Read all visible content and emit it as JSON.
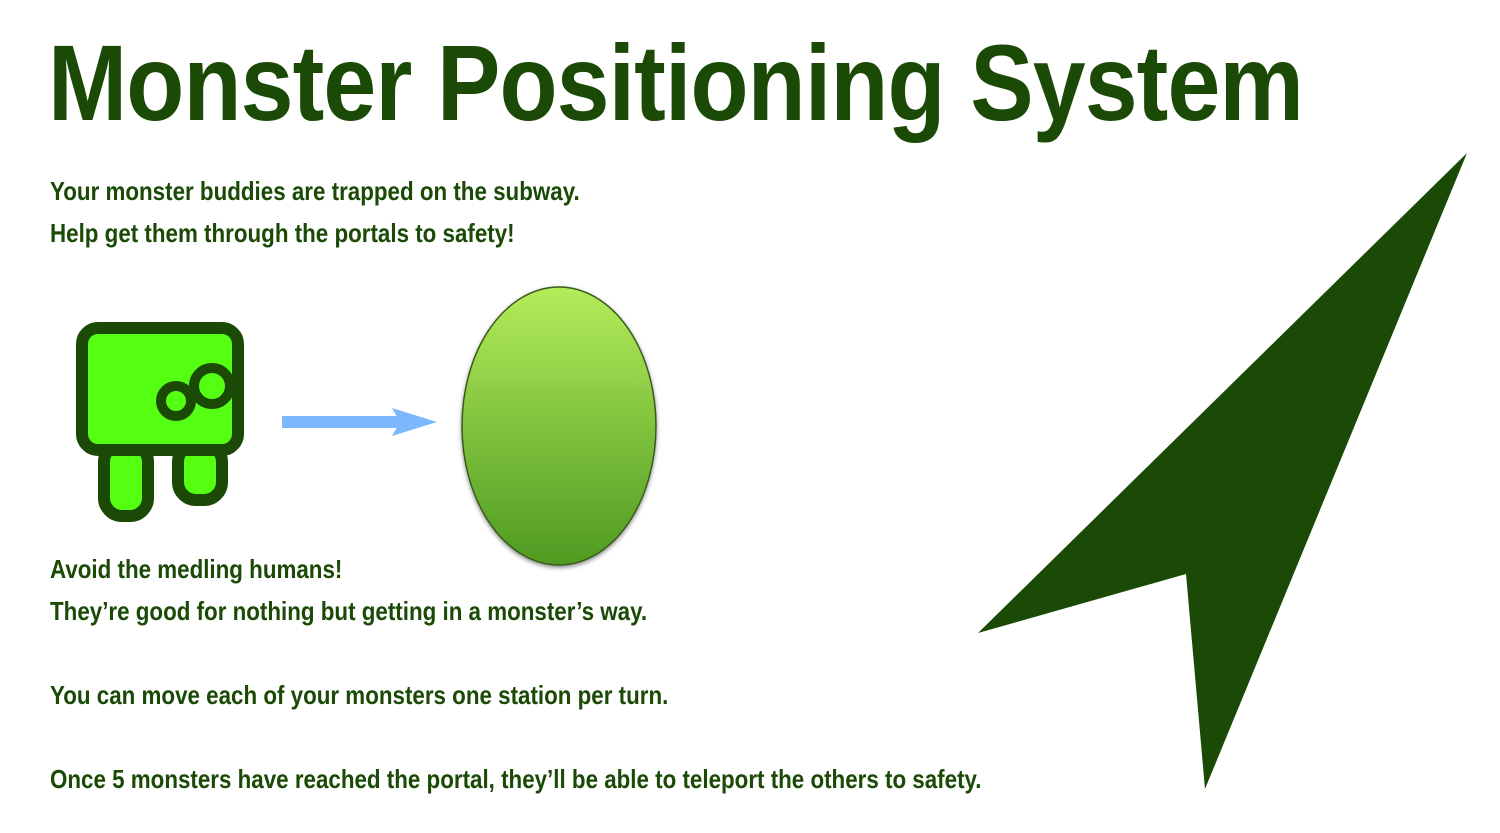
{
  "title": "Monster Positioning System",
  "intro": {
    "line1": "Your monster buddies are trapped on the subway.",
    "line2": "Help get them through the portals to safety!"
  },
  "rules": {
    "avoid_line1": "Avoid the medling humans!",
    "avoid_line2": "They’re good for nothing but getting in a monster’s way.",
    "move_line": "You can move each of your monsters one station per turn.",
    "win_line": "Once 5 monsters have reached the portal, they’ll be able to teleport the others to safety."
  },
  "colors": {
    "text": "#1a4a06",
    "monster_fill": "#55ff11",
    "monster_outline": "#1a4a06",
    "arrow": "#7db8ff",
    "portal_top": "#b3ec5a",
    "portal_bottom": "#4f9a22",
    "pointer": "#1a4a06"
  },
  "icons": {
    "monster": "monster-icon",
    "direction_arrow": "right-arrow-icon",
    "portal": "portal-icon",
    "pointer": "navigation-pointer-icon"
  }
}
